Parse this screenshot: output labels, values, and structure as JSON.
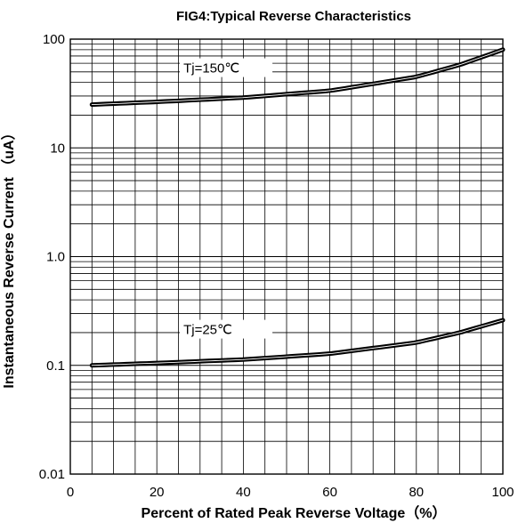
{
  "chart_data": {
    "type": "line",
    "title": "FIG4:Typical Reverse Characteristics",
    "xlabel": "Percent of Rated Peak Reverse Voltage（%）",
    "ylabel": "Instantaneous Reverse Current （uA）",
    "xlim": [
      0,
      100
    ],
    "ylim": [
      0.01,
      100
    ],
    "yscale": "log",
    "grid": true,
    "x_ticks": [
      "0",
      "20",
      "40",
      "60",
      "80",
      "100"
    ],
    "y_ticks": [
      "0.01",
      "0.1",
      "1.0",
      "10",
      "100"
    ],
    "series": [
      {
        "name": "Tj=150℃",
        "x": [
          5,
          20,
          40,
          60,
          80,
          90,
          100
        ],
        "y": [
          25,
          26.5,
          29,
          33.5,
          45,
          58,
          80
        ]
      },
      {
        "name": "Tj=25℃",
        "x": [
          5,
          20,
          40,
          60,
          80,
          90,
          100
        ],
        "y": [
          0.1,
          0.105,
          0.113,
          0.128,
          0.162,
          0.2,
          0.26
        ]
      }
    ],
    "line_color": "#000000",
    "grid_color": "#000000"
  }
}
